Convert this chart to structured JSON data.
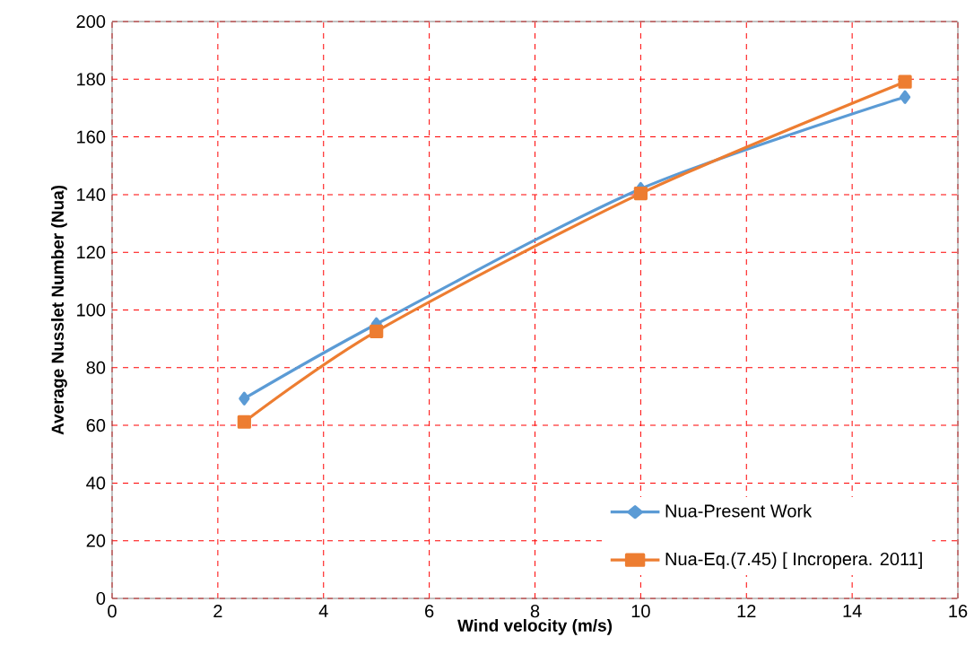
{
  "chart_data": {
    "type": "line",
    "xlabel": "Wind velocity (m/s)",
    "ylabel": "Average Nusslet Number (Nua)",
    "series": [
      {
        "name": "Nua-Present Work",
        "color": "#5b9bd5",
        "marker": "diamond",
        "x": [
          2.5,
          5,
          10,
          15
        ],
        "values": [
          69.3,
          95.1,
          142,
          173.8
        ]
      },
      {
        "name": "Nua-Eq.(7.45) [ Incropera. 2011]",
        "color": "#ed7d31",
        "marker": "square",
        "x": [
          2.5,
          5,
          10,
          15
        ],
        "values": [
          61.2,
          92.6,
          140.4,
          179.1
        ]
      }
    ],
    "xlim": [
      0,
      16
    ],
    "ylim": [
      0,
      200
    ],
    "xticks": [
      0,
      2,
      4,
      6,
      8,
      10,
      12,
      14,
      16
    ],
    "yticks": [
      0,
      20,
      40,
      60,
      80,
      100,
      120,
      140,
      160,
      180,
      200
    ],
    "grid": true,
    "legend": "bottom right",
    "line_style": "solid"
  }
}
